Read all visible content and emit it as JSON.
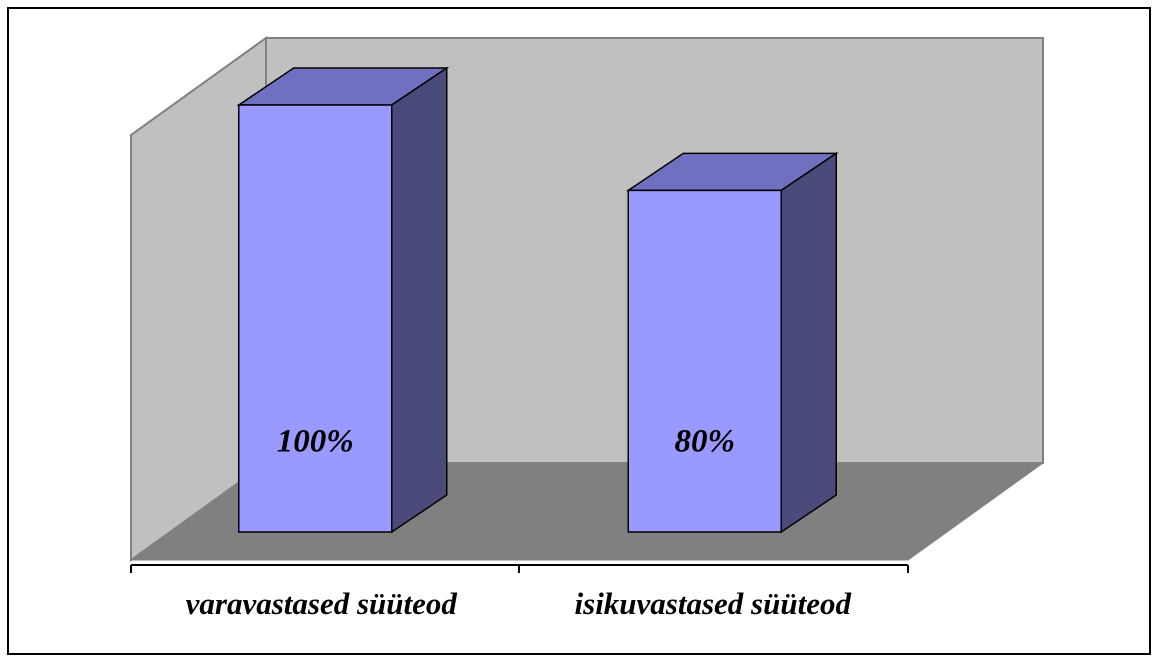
{
  "chart_data": {
    "type": "bar3d",
    "categories": [
      "varavastased süüteod",
      "isikuvastased süüteod"
    ],
    "values": [
      100,
      80
    ],
    "value_labels": [
      "100%",
      "80%"
    ],
    "color": "#9999ff",
    "ylim": [
      0,
      100
    ]
  }
}
